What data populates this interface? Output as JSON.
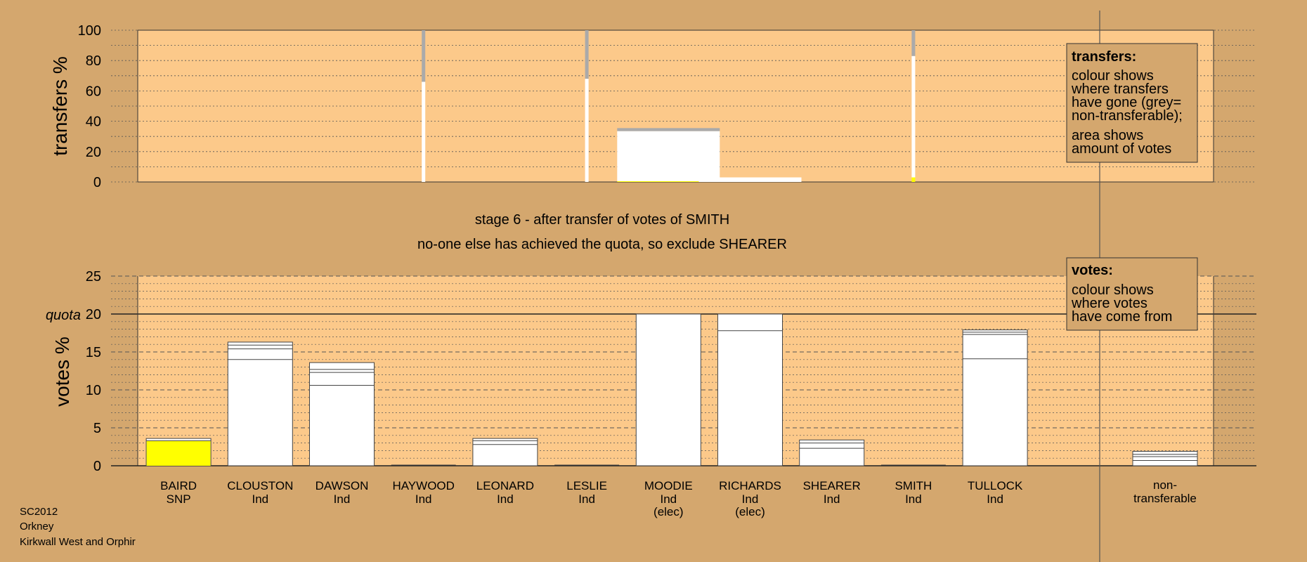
{
  "colors": {
    "page_bg": "#d4a76e",
    "panel_bg": "#fcc98a",
    "bar_fill": "#ffffff",
    "snp": "#ffff00",
    "nontransferable": "#aaaaaa",
    "grid": "#555555"
  },
  "stage": {
    "line1": "stage 6 - after transfer of votes of SMITH",
    "line2": "no-one else has achieved the quota, so exclude SHEARER"
  },
  "footer": {
    "line1": "SC2012",
    "line2": "Orkney",
    "line3": "Kirkwall West and Orphir"
  },
  "legend_transfers": {
    "title": "transfers:",
    "lines": [
      "colour shows",
      "where transfers",
      "have gone (grey=",
      "non-transferable);",
      "area shows",
      "amount of votes"
    ]
  },
  "legend_votes": {
    "title": "votes:",
    "lines": [
      "colour shows",
      "where votes",
      "have come from"
    ]
  },
  "chart_data": [
    {
      "type": "bar",
      "ylabel": "transfers %",
      "ylim": [
        0,
        100
      ],
      "yticks": [
        0,
        20,
        40,
        60,
        80,
        100
      ],
      "categories": [
        "BAIRD",
        "CLOUSTON",
        "DAWSON",
        "HAYWOOD",
        "LEONARD",
        "LESLIE",
        "MOODIE",
        "RICHARDS",
        "SHEARER",
        "SMITH",
        "TULLOCK"
      ],
      "transfer_bars": [
        {
          "candidate": "HAYWOOD",
          "kind": "thin",
          "white": 66,
          "grey": 34
        },
        {
          "candidate": "LESLIE",
          "kind": "thin",
          "white": 68,
          "grey": 32
        },
        {
          "candidate": "MOODIE",
          "kind": "wide",
          "white": 33,
          "grey": 2,
          "yellow": 0.5
        },
        {
          "candidate": "RICHARDS",
          "kind": "wide",
          "white": 3,
          "grey": 0
        },
        {
          "candidate": "SMITH",
          "kind": "thin",
          "white": 80,
          "grey": 17,
          "yellow": 3
        }
      ]
    },
    {
      "type": "bar",
      "ylabel": "votes %",
      "ylim": [
        0,
        25
      ],
      "yticks": [
        0,
        5,
        10,
        15,
        20,
        25
      ],
      "quota": 20,
      "quota_label": "quota",
      "candidates": [
        {
          "name": "BAIRD",
          "party": "SNP",
          "elec": "",
          "total": 3.6,
          "segments": [
            3.3
          ],
          "snp": true
        },
        {
          "name": "CLOUSTON",
          "party": "Ind",
          "elec": "",
          "total": 16.3,
          "segments": [
            14.0,
            15.4,
            15.9
          ]
        },
        {
          "name": "DAWSON",
          "party": "Ind",
          "elec": "",
          "total": 13.6,
          "segments": [
            10.6,
            12.3,
            12.7
          ]
        },
        {
          "name": "HAYWOOD",
          "party": "Ind",
          "elec": "",
          "total": 0,
          "segments": []
        },
        {
          "name": "LEONARD",
          "party": "Ind",
          "elec": "",
          "total": 3.6,
          "segments": [
            2.8,
            3.3
          ]
        },
        {
          "name": "LESLIE",
          "party": "Ind",
          "elec": "",
          "total": 0,
          "segments": []
        },
        {
          "name": "MOODIE",
          "party": "Ind",
          "elec": "(elec)",
          "total": 20,
          "segments": []
        },
        {
          "name": "RICHARDS",
          "party": "Ind",
          "elec": "(elec)",
          "total": 20,
          "segments": [
            17.8
          ]
        },
        {
          "name": "SHEARER",
          "party": "Ind",
          "elec": "",
          "total": 3.4,
          "segments": [
            2.3,
            3.0
          ]
        },
        {
          "name": "SMITH",
          "party": "Ind",
          "elec": "",
          "total": 0,
          "segments": []
        },
        {
          "name": "TULLOCK",
          "party": "Ind",
          "elec": "",
          "total": 17.9,
          "segments": [
            14.1,
            17.3,
            17.6
          ]
        }
      ],
      "nontransferable": {
        "line1": "non-",
        "line2": "transferable",
        "total": 1.9,
        "segments": [
          0.7,
          1.2,
          1.5
        ]
      }
    }
  ]
}
